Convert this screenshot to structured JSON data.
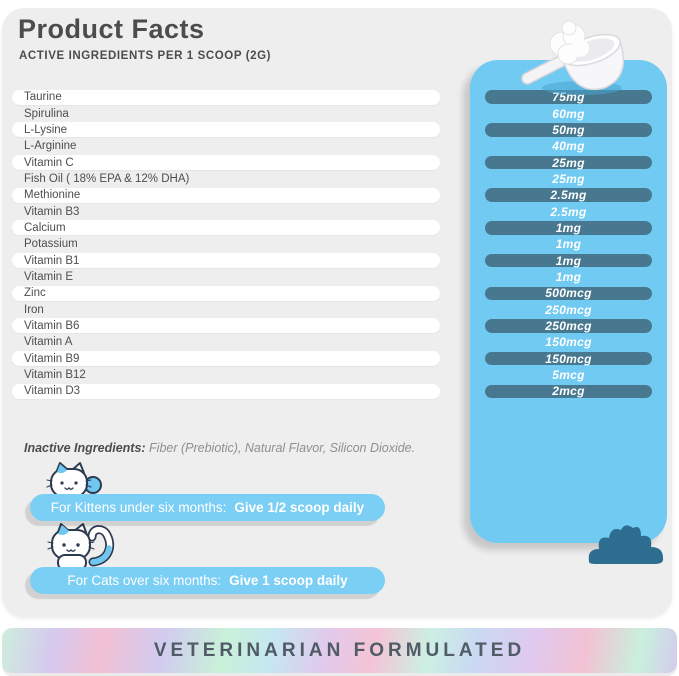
{
  "header": {
    "title": "Product Facts",
    "subtitle": "ACTIVE INGREDIENTS PER 1 SCOOP (2G)"
  },
  "ingredients": [
    {
      "name": "Taurine",
      "value": "75mg",
      "pill": true
    },
    {
      "name": "Spirulina",
      "value": "60mg",
      "pill": false
    },
    {
      "name": "L-Lysine",
      "value": "50mg",
      "pill": true
    },
    {
      "name": "L-Arginine",
      "value": "40mg",
      "pill": false
    },
    {
      "name": "Vitamin C",
      "value": "25mg",
      "pill": true
    },
    {
      "name": "Fish Oil ( 18% EPA & 12% DHA)",
      "value": "25mg",
      "pill": false
    },
    {
      "name": "Methionine",
      "value": "2.5mg",
      "pill": true
    },
    {
      "name": "Vitamin B3",
      "value": "2.5mg",
      "pill": false
    },
    {
      "name": "Calcium",
      "value": "1mg",
      "pill": true
    },
    {
      "name": "Potassium",
      "value": "1mg",
      "pill": false
    },
    {
      "name": "Vitamin B1",
      "value": "1mg",
      "pill": true
    },
    {
      "name": "Vitamin E",
      "value": "1mg",
      "pill": false
    },
    {
      "name": "Zinc",
      "value": "500mcg",
      "pill": true
    },
    {
      "name": "Iron",
      "value": "250mcg",
      "pill": false
    },
    {
      "name": "Vitamin B6",
      "value": "250mcg",
      "pill": true
    },
    {
      "name": "Vitamin A",
      "value": "150mcg",
      "pill": false
    },
    {
      "name": "Vitamin B9",
      "value": "150mcg",
      "pill": true
    },
    {
      "name": "Vitamin B12",
      "value": "5mcg",
      "pill": false
    },
    {
      "name": "Vitamin D3",
      "value": "2mcg",
      "pill": true
    }
  ],
  "inactive": {
    "label": "Inactive Ingredients:",
    "text": " Fiber (Prebiotic), Natural Flavor, Silicon Dioxide."
  },
  "instructions": [
    {
      "label": "For Kittens under six months:",
      "bold": "Give 1/2 scoop daily"
    },
    {
      "label": "For Cats over six months:",
      "bold": "Give 1 scoop daily"
    }
  ],
  "footer": {
    "text": "VETERINARIAN FORMULATED"
  },
  "colors": {
    "panel_blue": "#70caf1",
    "amount_pill_blue": "#47788f",
    "instruction_pill_blue": "#7bcef4",
    "card_gray": "#efeeef",
    "text_dark": "#4c4c4c",
    "footer_text": "#505b66",
    "paw_teal": "#2d6e90"
  }
}
